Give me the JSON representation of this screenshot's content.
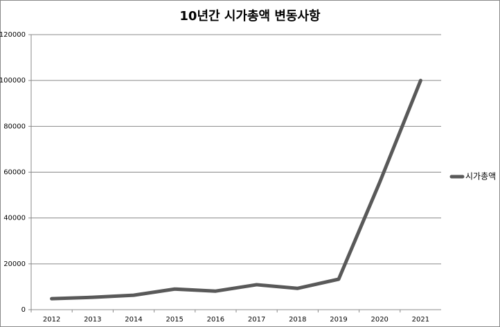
{
  "chart_data": {
    "type": "line",
    "title": "10년간 시가총액 변동사항",
    "categories": [
      "2012",
      "2013",
      "2014",
      "2015",
      "2016",
      "2017",
      "2018",
      "2019",
      "2020",
      "2021"
    ],
    "series": [
      {
        "name": "시가총액",
        "color": "#595959",
        "values": [
          4800,
          5400,
          6300,
          9000,
          8100,
          10900,
          9300,
          13300,
          55500,
          100000
        ]
      }
    ],
    "ylim": [
      0,
      120000
    ],
    "yticks": [
      0,
      20000,
      40000,
      60000,
      80000,
      100000,
      120000
    ],
    "grid": true,
    "legend": "right"
  }
}
